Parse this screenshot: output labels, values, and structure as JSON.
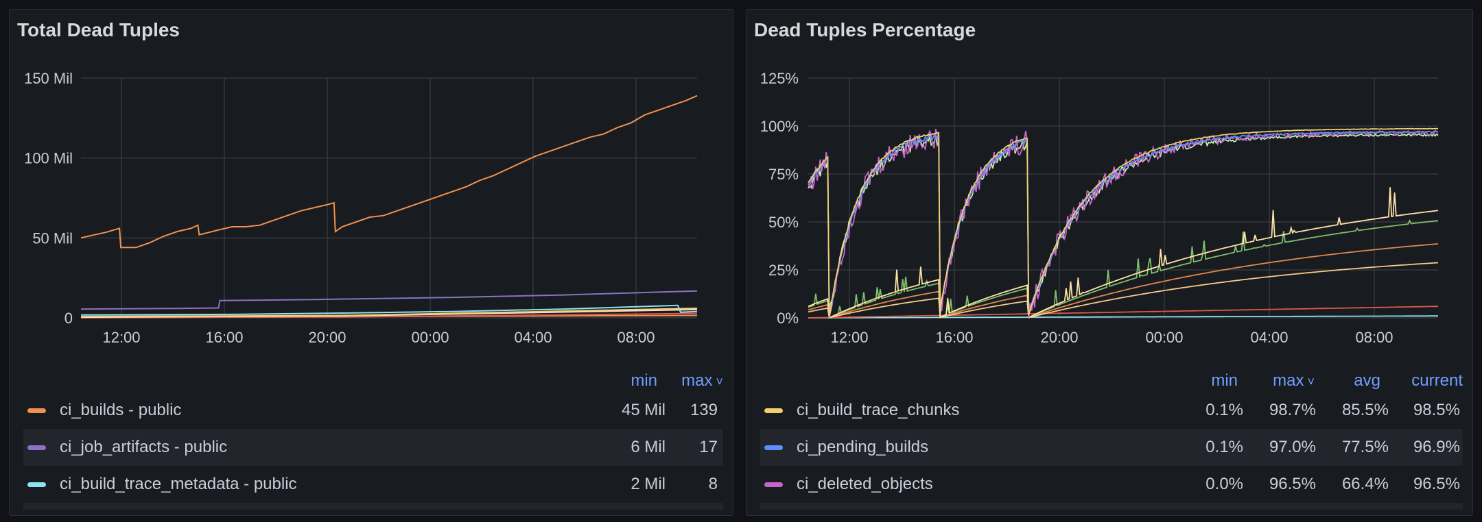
{
  "chart_data": [
    {
      "type": "line",
      "title": "Total Dead Tuples",
      "x_ticks": [
        "12:00",
        "16:00",
        "20:00",
        "00:00",
        "04:00",
        "08:00"
      ],
      "y_ticks": [
        "0",
        "50 Mil",
        "100 Mil",
        "150 Mil"
      ],
      "ylim": [
        0,
        150
      ],
      "xlim": [
        10.5,
        32.9
      ],
      "grid": true,
      "series": [
        {
          "name": "ci_builds - public",
          "color": "#f2914d",
          "points": [
            [
              10.5,
              50
            ],
            [
              11.0,
              52
            ],
            [
              11.4,
              53.5
            ],
            [
              11.9,
              56
            ],
            [
              11.95,
              44
            ],
            [
              12.5,
              44
            ],
            [
              13.0,
              47
            ],
            [
              13.5,
              51
            ],
            [
              14.0,
              54
            ],
            [
              14.5,
              56
            ],
            [
              14.75,
              58
            ],
            [
              14.8,
              52
            ],
            [
              15.5,
              55
            ],
            [
              16.0,
              57
            ],
            [
              16.5,
              57
            ],
            [
              17.0,
              58
            ],
            [
              17.5,
              61
            ],
            [
              18.0,
              64
            ],
            [
              18.5,
              67
            ],
            [
              19.0,
              69
            ],
            [
              19.5,
              71
            ],
            [
              19.7,
              72
            ],
            [
              19.75,
              54
            ],
            [
              20.0,
              57
            ],
            [
              20.5,
              60
            ],
            [
              21.0,
              63
            ],
            [
              21.5,
              64
            ],
            [
              22.0,
              67
            ],
            [
              22.5,
              70
            ],
            [
              23.0,
              73
            ],
            [
              23.5,
              76
            ],
            [
              24.0,
              79
            ],
            [
              24.5,
              82
            ],
            [
              25.0,
              86
            ],
            [
              25.5,
              89
            ],
            [
              26.0,
              93
            ],
            [
              26.5,
              97
            ],
            [
              27.0,
              101
            ],
            [
              27.5,
              104
            ],
            [
              28.0,
              107
            ],
            [
              28.5,
              110
            ],
            [
              29.0,
              113
            ],
            [
              29.5,
              115
            ],
            [
              30.0,
              119
            ],
            [
              30.5,
              122
            ],
            [
              31.0,
              127
            ],
            [
              31.5,
              130
            ],
            [
              32.0,
              133
            ],
            [
              32.5,
              136
            ],
            [
              32.9,
              139
            ]
          ]
        },
        {
          "name": "ci_job_artifacts - public",
          "color": "#8f70c2",
          "points": [
            [
              10.5,
              5.5
            ],
            [
              14.0,
              5.9
            ],
            [
              15.5,
              6.2
            ],
            [
              15.55,
              10.8
            ],
            [
              19.0,
              11.5
            ],
            [
              24.0,
              12.8
            ],
            [
              28.0,
              14.3
            ],
            [
              32.9,
              16.8
            ]
          ]
        },
        {
          "name": "ci_build_trace_metadata - public",
          "color": "#8ee3f1",
          "points": [
            [
              10.5,
              1.8
            ],
            [
              16.0,
              2.2
            ],
            [
              20.0,
              3.0
            ],
            [
              24.0,
              4.0
            ],
            [
              28.0,
              5.5
            ],
            [
              32.2,
              7.8
            ],
            [
              32.3,
              3.5
            ],
            [
              32.9,
              4.0
            ]
          ]
        },
        {
          "color": "#f3cf6b",
          "points": [
            [
              10.5,
              0.8
            ],
            [
              20.0,
              1.5
            ],
            [
              26.0,
              3.5
            ],
            [
              32.9,
              6.0
            ]
          ]
        },
        {
          "color": "#fadde1",
          "points": [
            [
              10.5,
              0.4
            ],
            [
              20.0,
              1.2
            ],
            [
              26.0,
              3.0
            ],
            [
              32.9,
              5.2
            ]
          ]
        },
        {
          "color": "#de5a4a",
          "points": [
            [
              10.5,
              0.2
            ],
            [
              20.0,
              0.6
            ],
            [
              26.0,
              1.5
            ],
            [
              32.9,
              2.8
            ]
          ]
        },
        {
          "color": "#f2914d",
          "points": [
            [
              10.5,
              0.1
            ],
            [
              24.0,
              1.0
            ],
            [
              32.9,
              1.5
            ]
          ]
        }
      ],
      "legend": {
        "columns": [
          "min",
          "max"
        ],
        "rows": [
          {
            "name": "ci_builds - public",
            "color": "#f2914d",
            "min": "45 Mil",
            "max": "139"
          },
          {
            "name": "ci_job_artifacts - public",
            "color": "#8f70c2",
            "min": "6 Mil",
            "max": "17"
          },
          {
            "name": "ci_build_trace_metadata - public",
            "color": "#8ee3f1",
            "min": "2 Mil",
            "max": "8"
          }
        ]
      }
    },
    {
      "type": "line",
      "title": "Dead Tuples Percentage",
      "x_ticks": [
        "12:00",
        "16:00",
        "20:00",
        "00:00",
        "04:00",
        "08:00"
      ],
      "y_ticks": [
        "0%",
        "25%",
        "50%",
        "75%",
        "100%",
        "125%"
      ],
      "ylim": [
        0,
        125
      ],
      "xlim": [
        10.4,
        34.5
      ],
      "grid": true,
      "series": [
        {
          "name": "ci_build_trace_chunks",
          "color": "#f3cf6b",
          "shape": "sawtooth",
          "peak": 98.7,
          "noise": 1
        },
        {
          "name": "ci_pending_builds",
          "color": "#5b8ff9",
          "shape": "sawtooth",
          "peak": 97.0,
          "noise": 3
        },
        {
          "name": "ci_deleted_objects",
          "color": "#c865cc",
          "shape": "sawtooth",
          "peak": 96.5,
          "noise": 12
        },
        {
          "color": "#c9f0b0",
          "shape": "sawtooth",
          "peak": 95.5,
          "noise": 6
        },
        {
          "color": "#ffe3a8",
          "shape": "slow",
          "peak": 74,
          "noise": 8
        },
        {
          "color": "#f9c98a",
          "shape": "slow",
          "peak": 38,
          "noise": 0
        },
        {
          "color": "#7fbf6a",
          "shape": "slow",
          "peak": 67,
          "noise": 5
        },
        {
          "color": "#e3884e",
          "shape": "slow",
          "peak": 51,
          "noise": 0
        },
        {
          "color": "#de5a4a",
          "shape": "flat",
          "peak": 6,
          "noise": 0
        },
        {
          "color": "#8ee3f1",
          "shape": "flat",
          "peak": 1,
          "noise": 0
        }
      ],
      "legend": {
        "columns": [
          "min",
          "max",
          "avg",
          "current"
        ],
        "rows": [
          {
            "name": "ci_build_trace_chunks",
            "color": "#f3cf6b",
            "min": "0.1%",
            "max": "98.7%",
            "avg": "85.5%",
            "current": "98.5%"
          },
          {
            "name": "ci_pending_builds",
            "color": "#5b8ff9",
            "min": "0.1%",
            "max": "97.0%",
            "avg": "77.5%",
            "current": "96.9%"
          },
          {
            "name": "ci_deleted_objects",
            "color": "#c865cc",
            "min": "0.0%",
            "max": "96.5%",
            "avg": "66.4%",
            "current": "96.5%"
          }
        ]
      }
    }
  ],
  "panels": {
    "left": {
      "title": "Total Dead Tuples",
      "legend_head": {
        "min": "min",
        "max": "max"
      },
      "rows": [
        {
          "name": "ci_builds - public",
          "min": "45 Mil",
          "max": "139"
        },
        {
          "name": "ci_job_artifacts - public",
          "min": "6 Mil",
          "max": "17"
        },
        {
          "name": "ci_build_trace_metadata - public",
          "min": "2 Mil",
          "max": "8"
        }
      ]
    },
    "right": {
      "title": "Dead Tuples Percentage",
      "legend_head": {
        "min": "min",
        "max": "max",
        "avg": "avg",
        "current": "current"
      },
      "rows": [
        {
          "name": "ci_build_trace_chunks",
          "min": "0.1%",
          "max": "98.7%",
          "avg": "85.5%",
          "current": "98.5%"
        },
        {
          "name": "ci_pending_builds",
          "min": "0.1%",
          "max": "97.0%",
          "avg": "77.5%",
          "current": "96.9%"
        },
        {
          "name": "ci_deleted_objects",
          "min": "0.0%",
          "max": "96.5%",
          "avg": "66.4%",
          "current": "96.5%"
        }
      ]
    }
  }
}
